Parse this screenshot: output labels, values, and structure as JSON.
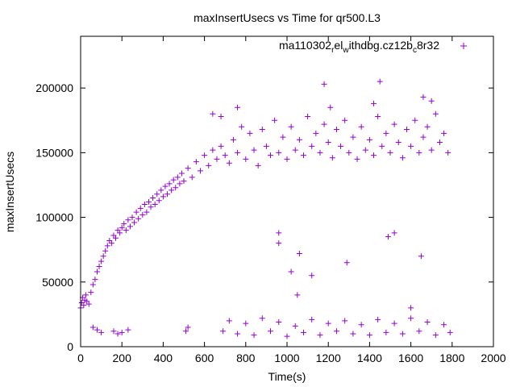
{
  "chart_data": {
    "type": "scatter",
    "title": "maxInsertUsecs vs Time for qr500.L3",
    "xlabel": "Time(s)",
    "ylabel": "maxInsertUsecs",
    "xlim": [
      0,
      2000
    ],
    "ylim": [
      0,
      240000
    ],
    "xticks": [
      0,
      200,
      400,
      600,
      800,
      1000,
      1200,
      1400,
      1600,
      1800,
      2000
    ],
    "yticks": [
      0,
      50000,
      100000,
      150000,
      200000
    ],
    "legend": {
      "position": "top-right",
      "marker": "+"
    },
    "series": [
      {
        "name": "ma110302",
        "name_parts": [
          "ma110302",
          "r",
          "el",
          "w",
          "ithdbg.cz12b",
          "c",
          "8r32"
        ],
        "marker": "+",
        "color": "#9400d3",
        "summary": "Rising trend from ~35000 at t=0 to ~150000 by t~700, then roughly flat 130000-185000 until t~1800; plus a second cluster of outliers near 8000-25000 from t~650 to 1800.",
        "points": [
          [
            0,
            30000
          ],
          [
            5,
            34000
          ],
          [
            10,
            38000
          ],
          [
            15,
            32000
          ],
          [
            20,
            36000
          ],
          [
            25,
            40000
          ],
          [
            30,
            35000
          ],
          [
            40,
            33000
          ],
          [
            50,
            42000
          ],
          [
            60,
            48000
          ],
          [
            70,
            52000
          ],
          [
            80,
            58000
          ],
          [
            90,
            62000
          ],
          [
            100,
            66000
          ],
          [
            110,
            70000
          ],
          [
            120,
            74000
          ],
          [
            130,
            78000
          ],
          [
            140,
            82000
          ],
          [
            150,
            80000
          ],
          [
            160,
            86000
          ],
          [
            170,
            84000
          ],
          [
            180,
            90000
          ],
          [
            190,
            88000
          ],
          [
            200,
            92000
          ],
          [
            210,
            95000
          ],
          [
            220,
            90000
          ],
          [
            230,
            98000
          ],
          [
            240,
            93000
          ],
          [
            250,
            100000
          ],
          [
            260,
            96000
          ],
          [
            270,
            104000
          ],
          [
            280,
            99000
          ],
          [
            290,
            107000
          ],
          [
            300,
            102000
          ],
          [
            310,
            110000
          ],
          [
            320,
            104000
          ],
          [
            330,
            112000
          ],
          [
            340,
            108000
          ],
          [
            350,
            115000
          ],
          [
            360,
            110000
          ],
          [
            370,
            118000
          ],
          [
            380,
            113000
          ],
          [
            390,
            121000
          ],
          [
            400,
            116000
          ],
          [
            410,
            124000
          ],
          [
            420,
            118000
          ],
          [
            430,
            126000
          ],
          [
            440,
            121000
          ],
          [
            450,
            129000
          ],
          [
            460,
            123000
          ],
          [
            470,
            131000
          ],
          [
            480,
            126000
          ],
          [
            490,
            134000
          ],
          [
            500,
            128000
          ],
          [
            520,
            138000
          ],
          [
            540,
            131000
          ],
          [
            560,
            143000
          ],
          [
            580,
            136000
          ],
          [
            600,
            148000
          ],
          [
            620,
            140000
          ],
          [
            640,
            152000
          ],
          [
            660,
            145000
          ],
          [
            680,
            155000
          ],
          [
            700,
            148000
          ],
          [
            720,
            142000
          ],
          [
            740,
            160000
          ],
          [
            760,
            150000
          ],
          [
            780,
            170000
          ],
          [
            800,
            145000
          ],
          [
            820,
            165000
          ],
          [
            840,
            152000
          ],
          [
            860,
            140000
          ],
          [
            880,
            168000
          ],
          [
            900,
            155000
          ],
          [
            920,
            148000
          ],
          [
            940,
            175000
          ],
          [
            960,
            150000
          ],
          [
            980,
            162000
          ],
          [
            1000,
            145000
          ],
          [
            1020,
            170000
          ],
          [
            1040,
            152000
          ],
          [
            1060,
            160000
          ],
          [
            1080,
            148000
          ],
          [
            1100,
            178000
          ],
          [
            1120,
            155000
          ],
          [
            1140,
            165000
          ],
          [
            1160,
            150000
          ],
          [
            1180,
            172000
          ],
          [
            1200,
            158000
          ],
          [
            1220,
            146000
          ],
          [
            1240,
            168000
          ],
          [
            1260,
            155000
          ],
          [
            1280,
            175000
          ],
          [
            1300,
            150000
          ],
          [
            1320,
            162000
          ],
          [
            1340,
            145000
          ],
          [
            1360,
            170000
          ],
          [
            1380,
            152000
          ],
          [
            1400,
            160000
          ],
          [
            1420,
            148000
          ],
          [
            1440,
            178000
          ],
          [
            1460,
            155000
          ],
          [
            1480,
            165000
          ],
          [
            1500,
            150000
          ],
          [
            1520,
            172000
          ],
          [
            1540,
            158000
          ],
          [
            1560,
            146000
          ],
          [
            1580,
            168000
          ],
          [
            1600,
            155000
          ],
          [
            1620,
            175000
          ],
          [
            1640,
            150000
          ],
          [
            1660,
            162000
          ],
          [
            1680,
            170000
          ],
          [
            1700,
            152000
          ],
          [
            1720,
            180000
          ],
          [
            1740,
            158000
          ],
          [
            1760,
            165000
          ],
          [
            1780,
            150000
          ],
          [
            1180,
            203000
          ],
          [
            1450,
            205000
          ],
          [
            1660,
            193000
          ],
          [
            1700,
            190000
          ],
          [
            1420,
            188000
          ],
          [
            760,
            185000
          ],
          [
            1210,
            185000
          ],
          [
            640,
            180000
          ],
          [
            680,
            178000
          ],
          [
            690,
            12000
          ],
          [
            720,
            20000
          ],
          [
            760,
            10000
          ],
          [
            800,
            18000
          ],
          [
            840,
            9000
          ],
          [
            880,
            22000
          ],
          [
            920,
            12000
          ],
          [
            960,
            19000
          ],
          [
            1000,
            8000
          ],
          [
            1040,
            16000
          ],
          [
            1080,
            11000
          ],
          [
            1120,
            21000
          ],
          [
            1160,
            9000
          ],
          [
            1200,
            18000
          ],
          [
            1240,
            12000
          ],
          [
            1280,
            20000
          ],
          [
            1320,
            10000
          ],
          [
            1360,
            17000
          ],
          [
            1400,
            9000
          ],
          [
            1440,
            21000
          ],
          [
            1480,
            11000
          ],
          [
            1520,
            18000
          ],
          [
            1560,
            10000
          ],
          [
            1600,
            22000
          ],
          [
            1640,
            12000
          ],
          [
            1680,
            19000
          ],
          [
            1720,
            9000
          ],
          [
            1760,
            17000
          ],
          [
            1790,
            11000
          ],
          [
            960,
            88000
          ],
          [
            960,
            80000
          ],
          [
            1060,
            72000
          ],
          [
            1020,
            58000
          ],
          [
            1120,
            55000
          ],
          [
            1050,
            40000
          ],
          [
            1290,
            65000
          ],
          [
            1490,
            85000
          ],
          [
            1520,
            88000
          ],
          [
            1600,
            30000
          ],
          [
            1650,
            70000
          ],
          [
            510,
            12000
          ],
          [
            520,
            15000
          ],
          [
            180,
            10000
          ],
          [
            160,
            12000
          ],
          [
            200,
            11000
          ],
          [
            230,
            13000
          ],
          [
            60,
            15000
          ],
          [
            80,
            13000
          ],
          [
            100,
            11000
          ]
        ]
      }
    ]
  }
}
